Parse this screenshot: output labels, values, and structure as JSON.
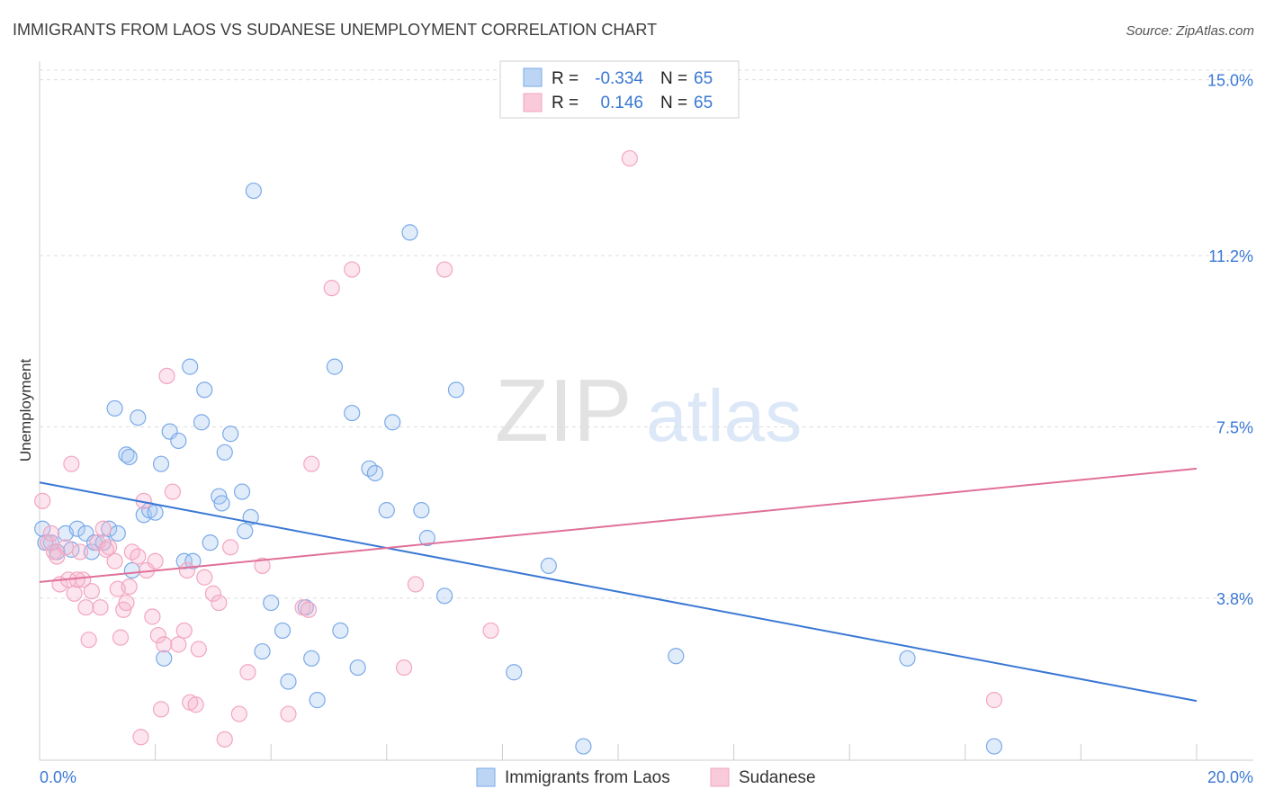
{
  "chart_data": {
    "type": "scatter",
    "title": "IMMIGRANTS FROM LAOS VS SUDANESE UNEMPLOYMENT CORRELATION CHART",
    "source": "Source: ZipAtlas.com",
    "ylabel": "Unemployment",
    "xlim": [
      0,
      20
    ],
    "ylim": [
      0.3,
      15.4
    ],
    "x_tick_labels": [
      {
        "value": 0,
        "label": "0.0%"
      },
      {
        "value": 20,
        "label": "20.0%"
      }
    ],
    "y_tick_labels": [
      {
        "value": 15.0,
        "label": "15.0%"
      },
      {
        "value": 11.2,
        "label": "11.2%"
      },
      {
        "value": 7.5,
        "label": "7.5%"
      },
      {
        "value": 3.8,
        "label": "3.8%"
      }
    ],
    "watermark": {
      "part1": "ZIP",
      "part2": "atlas"
    },
    "legend_stats": [
      {
        "r_label": "R =",
        "r_value": "-0.334",
        "n_label": "N =",
        "n_value": "65"
      },
      {
        "r_label": "R =",
        "r_value": "0.146",
        "n_label": "N =",
        "n_value": "65"
      }
    ],
    "series": [
      {
        "name": "Immigrants from Laos",
        "color": "#7aaae8",
        "line_color": "#3a78d4",
        "trend": {
          "x0": 0,
          "y0": 6.3,
          "x1": 20,
          "y1": 1.58
        },
        "points": [
          [
            0.05,
            5.3
          ],
          [
            0.2,
            5.0
          ],
          [
            0.3,
            4.8
          ],
          [
            0.45,
            5.2
          ],
          [
            0.65,
            5.3
          ],
          [
            0.8,
            5.2
          ],
          [
            0.9,
            4.8
          ],
          [
            0.95,
            5.0
          ],
          [
            1.1,
            5.0
          ],
          [
            1.2,
            5.3
          ],
          [
            1.3,
            7.9
          ],
          [
            1.35,
            5.2
          ],
          [
            1.5,
            6.9
          ],
          [
            1.55,
            6.85
          ],
          [
            1.6,
            4.4
          ],
          [
            1.7,
            7.7
          ],
          [
            1.8,
            5.6
          ],
          [
            1.9,
            5.7
          ],
          [
            2.0,
            5.65
          ],
          [
            2.1,
            6.7
          ],
          [
            2.15,
            2.5
          ],
          [
            2.25,
            7.4
          ],
          [
            2.4,
            7.2
          ],
          [
            2.5,
            4.6
          ],
          [
            2.6,
            8.8
          ],
          [
            2.65,
            4.6
          ],
          [
            2.8,
            7.6
          ],
          [
            2.85,
            8.3
          ],
          [
            2.95,
            5.0
          ],
          [
            3.1,
            6.0
          ],
          [
            3.15,
            5.85
          ],
          [
            3.2,
            6.95
          ],
          [
            3.3,
            7.35
          ],
          [
            3.5,
            6.1
          ],
          [
            3.55,
            5.25
          ],
          [
            3.65,
            5.55
          ],
          [
            3.7,
            12.6
          ],
          [
            3.85,
            2.65
          ],
          [
            4.0,
            3.7
          ],
          [
            4.2,
            3.1
          ],
          [
            4.3,
            2.0
          ],
          [
            4.6,
            3.6
          ],
          [
            4.7,
            2.5
          ],
          [
            4.8,
            1.6
          ],
          [
            5.1,
            8.8
          ],
          [
            5.2,
            3.1
          ],
          [
            5.4,
            7.8
          ],
          [
            5.5,
            2.3
          ],
          [
            5.7,
            6.6
          ],
          [
            5.8,
            6.5
          ],
          [
            6.0,
            5.7
          ],
          [
            6.1,
            7.6
          ],
          [
            6.4,
            11.7
          ],
          [
            6.6,
            5.7
          ],
          [
            6.7,
            5.1
          ],
          [
            7.0,
            3.85
          ],
          [
            7.2,
            8.3
          ],
          [
            8.2,
            2.2
          ],
          [
            8.8,
            4.5
          ],
          [
            9.4,
            0.6
          ],
          [
            11.0,
            2.55
          ],
          [
            15.0,
            2.5
          ],
          [
            16.5,
            0.6
          ],
          [
            0.1,
            5.0
          ],
          [
            0.55,
            4.85
          ]
        ]
      },
      {
        "name": "Sudanese",
        "color": "#f2a6c0",
        "line_color": "#e0709a",
        "trend": {
          "x0": 0,
          "y0": 4.15,
          "x1": 20,
          "y1": 6.6
        },
        "points": [
          [
            0.05,
            5.9
          ],
          [
            0.15,
            5.0
          ],
          [
            0.25,
            4.8
          ],
          [
            0.35,
            4.1
          ],
          [
            0.45,
            4.9
          ],
          [
            0.5,
            4.2
          ],
          [
            0.55,
            6.7
          ],
          [
            0.6,
            3.9
          ],
          [
            0.7,
            4.8
          ],
          [
            0.75,
            4.2
          ],
          [
            0.8,
            3.6
          ],
          [
            0.85,
            2.9
          ],
          [
            0.9,
            3.95
          ],
          [
            1.0,
            5.0
          ],
          [
            1.05,
            3.6
          ],
          [
            1.1,
            5.3
          ],
          [
            1.2,
            4.9
          ],
          [
            1.3,
            4.6
          ],
          [
            1.35,
            4.0
          ],
          [
            1.4,
            2.95
          ],
          [
            1.45,
            3.55
          ],
          [
            1.5,
            3.7
          ],
          [
            1.6,
            4.8
          ],
          [
            1.7,
            4.7
          ],
          [
            1.75,
            0.8
          ],
          [
            1.8,
            5.9
          ],
          [
            1.85,
            4.4
          ],
          [
            1.95,
            3.4
          ],
          [
            2.0,
            4.6
          ],
          [
            2.05,
            3.0
          ],
          [
            2.1,
            1.4
          ],
          [
            2.15,
            2.8
          ],
          [
            2.2,
            8.6
          ],
          [
            2.3,
            6.1
          ],
          [
            2.5,
            3.1
          ],
          [
            2.55,
            4.4
          ],
          [
            2.6,
            1.55
          ],
          [
            2.7,
            1.5
          ],
          [
            2.75,
            2.7
          ],
          [
            2.85,
            4.25
          ],
          [
            3.0,
            3.9
          ],
          [
            3.1,
            3.7
          ],
          [
            3.2,
            0.75
          ],
          [
            3.3,
            4.9
          ],
          [
            3.45,
            1.3
          ],
          [
            3.6,
            2.2
          ],
          [
            3.85,
            4.5
          ],
          [
            4.3,
            1.3
          ],
          [
            4.55,
            3.6
          ],
          [
            4.65,
            3.55
          ],
          [
            4.7,
            6.7
          ],
          [
            5.05,
            10.5
          ],
          [
            5.4,
            10.9
          ],
          [
            6.3,
            2.3
          ],
          [
            6.5,
            4.1
          ],
          [
            7.0,
            10.9
          ],
          [
            7.8,
            3.1
          ],
          [
            10.2,
            13.3
          ],
          [
            16.5,
            1.6
          ],
          [
            0.2,
            5.2
          ],
          [
            0.3,
            4.7
          ],
          [
            0.65,
            4.2
          ],
          [
            1.15,
            4.85
          ],
          [
            1.55,
            4.05
          ],
          [
            2.4,
            2.8
          ]
        ]
      }
    ]
  }
}
